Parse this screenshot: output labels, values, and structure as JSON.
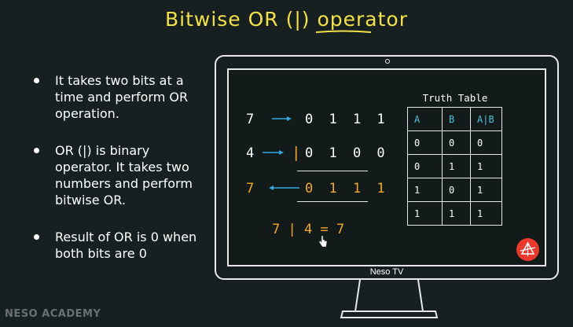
{
  "title": "Bitwise OR (|) operator",
  "bullets": [
    "It takes two bits at a time and perform OR operation.",
    "OR (|) is binary operator. It takes two numbers and perform bitwise OR.",
    "Result of  OR is 0 when both bits are 0"
  ],
  "example": {
    "row1": {
      "num": "7",
      "bits": "0 1 1 1"
    },
    "row2": {
      "num": "4",
      "op": "|",
      "bits": "0 1 0 0"
    },
    "row3": {
      "num": "7",
      "bits": "0 1 1 1"
    },
    "expression": "7 | 4 = 7"
  },
  "truth_table": {
    "title": "Truth Table",
    "headers": [
      "A",
      "B",
      "A|B"
    ],
    "rows": [
      [
        "0",
        "0",
        "0"
      ],
      [
        "0",
        "1",
        "1"
      ],
      [
        "1",
        "0",
        "1"
      ],
      [
        "1",
        "1",
        "1"
      ]
    ]
  },
  "monitor_label": "Neso TV",
  "watermark": "NESO ACADEMY",
  "colors": {
    "title": "#f4e04a",
    "highlight": "#f0a830",
    "arrow": "#35a6e0",
    "table_header": "#4fc3d9",
    "background": "#172020"
  },
  "icons": [
    "arrow-right-icon",
    "arrow-left-icon",
    "neso-logo-icon",
    "hand-cursor-icon"
  ]
}
